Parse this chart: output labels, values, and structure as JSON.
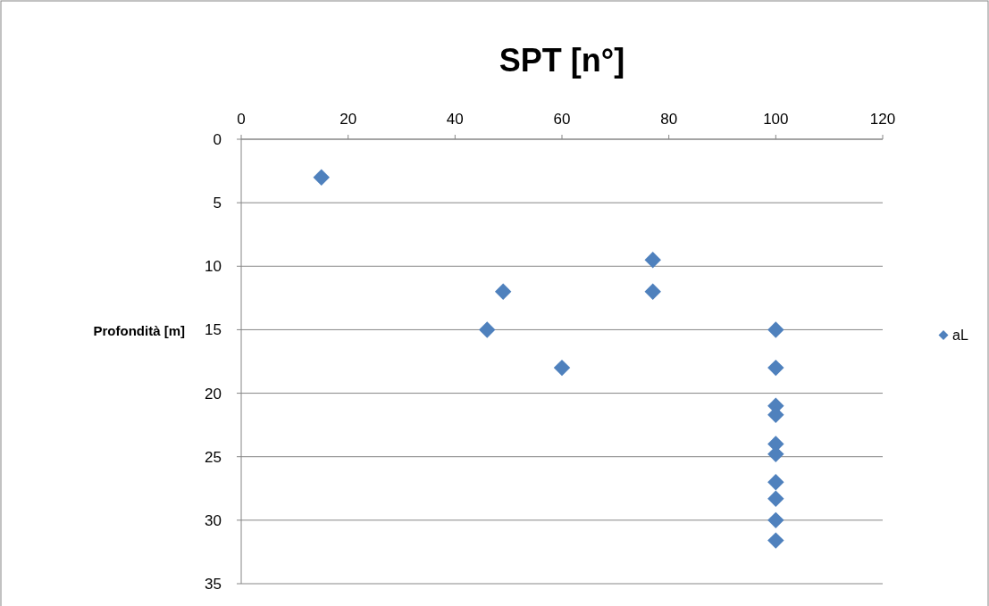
{
  "chart_data": {
    "type": "scatter",
    "title": "SPT [n°]",
    "ylabel": "Profondità [m]",
    "xlim": [
      0,
      120
    ],
    "xticks": [
      0,
      20,
      40,
      60,
      80,
      100,
      120
    ],
    "ylim": [
      35,
      0
    ],
    "yticks": [
      0,
      5,
      10,
      15,
      20,
      25,
      30,
      35
    ],
    "grid": "y",
    "legend": "right",
    "marker": "diamond",
    "series": [
      {
        "name": "aL",
        "color": "#4f81bd",
        "x": [
          15,
          77,
          49,
          77,
          46,
          100,
          60,
          100,
          100,
          100,
          100,
          100,
          100,
          100,
          100,
          100
        ],
        "values": [
          3,
          9.5,
          12,
          12,
          15,
          15,
          18,
          18,
          21,
          21.7,
          24,
          24.8,
          27,
          28.3,
          30,
          31.6
        ]
      }
    ]
  }
}
